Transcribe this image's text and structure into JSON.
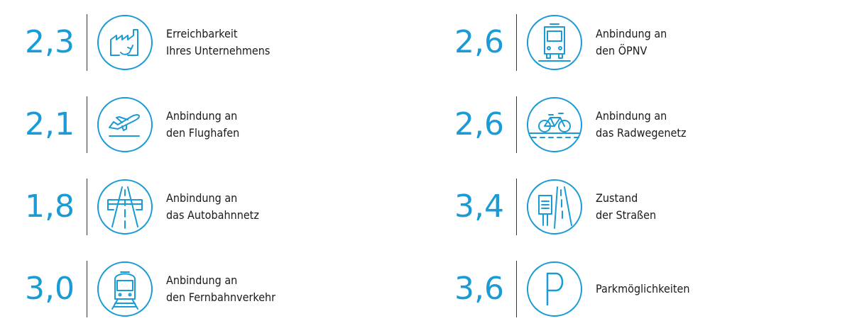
{
  "accent_color": "#1a9bd6",
  "items": [
    {
      "score": "2,3",
      "label_1": "Erreichbarkeit",
      "label_2": "Ihres Unternehmens",
      "icon": "factory-icon"
    },
    {
      "score": "2,1",
      "label_1": "Anbindung an",
      "label_2": "den Flughafen",
      "icon": "airplane-icon"
    },
    {
      "score": "1,8",
      "label_1": "Anbindung an",
      "label_2": "das Autobahnnetz",
      "icon": "highway-icon"
    },
    {
      "score": "3,0",
      "label_1": "Anbindung an",
      "label_2": "den Fernbahnverkehr",
      "icon": "train-icon"
    },
    {
      "score": "2,6",
      "label_1": "Anbindung an",
      "label_2": "den ÖPNV",
      "icon": "bus-icon"
    },
    {
      "score": "2,6",
      "label_1": "Anbindung an",
      "label_2": "das Radwegenetz",
      "icon": "bicycle-icon"
    },
    {
      "score": "3,4",
      "label_1": "Zustand",
      "label_2": "der Straßen",
      "icon": "road-sign-icon"
    },
    {
      "score": "3,6",
      "label_1": "Parkmöglichkeiten",
      "label_2": "",
      "icon": "parking-icon"
    }
  ]
}
